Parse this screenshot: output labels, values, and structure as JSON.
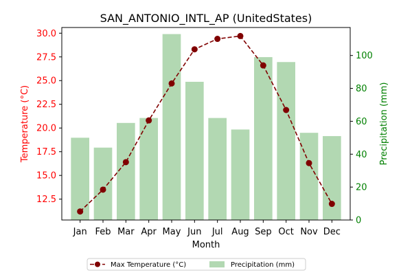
{
  "chart_data": {
    "type": "bar+line",
    "title": "SAN_ANTONIO_INTL_AP (UnitedStates)",
    "xlabel": "Month",
    "ylabel_left": "Temperature (°C)",
    "ylabel_right": "Precipitation (mm)",
    "categories": [
      "Jan",
      "Feb",
      "Mar",
      "Apr",
      "May",
      "Jun",
      "Jul",
      "Aug",
      "Sep",
      "Oct",
      "Nov",
      "Dec"
    ],
    "ylim_left": [
      10.3,
      30.6
    ],
    "ylim_right": [
      0,
      117
    ],
    "yticks_left": [
      "12.5",
      "15.0",
      "17.5",
      "20.0",
      "22.5",
      "25.0",
      "27.5",
      "30.0"
    ],
    "yticks_right": [
      "0",
      "20",
      "40",
      "60",
      "80",
      "100"
    ],
    "series": [
      {
        "name": "Max Temperature (°C)",
        "kind": "line",
        "axis": "left",
        "color": "#800000",
        "values": [
          11.2,
          13.5,
          16.4,
          20.8,
          24.7,
          28.3,
          29.4,
          29.7,
          26.6,
          21.9,
          16.3,
          12.0
        ]
      },
      {
        "name": "Precipitation (mm)",
        "kind": "bar",
        "axis": "right",
        "color": "#b2d8b2",
        "values": [
          50,
          44,
          59,
          62,
          113,
          84,
          62,
          55,
          99,
          96,
          53,
          51
        ]
      }
    ],
    "legend": {
      "placement": "bottom-center",
      "entries": [
        "Max Temperature (°C)",
        "Precipitation (mm)"
      ]
    },
    "colors": {
      "left_axis": "#ff0000",
      "right_axis": "#008000",
      "text": "#000000"
    },
    "grid": false
  }
}
